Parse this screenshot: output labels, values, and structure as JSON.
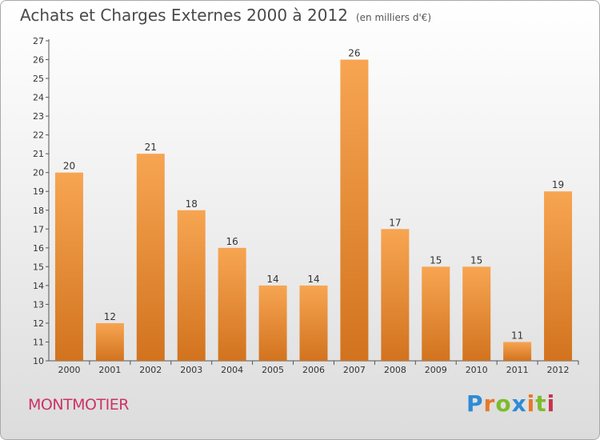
{
  "header": {
    "title": "Achats et Charges Externes 2000 à 2012",
    "subtitle": "(en milliers d'€)"
  },
  "footer": {
    "town": "MONTMOTIER",
    "logo_text": "Proxiti"
  },
  "colors": {
    "bar_light": "#f7a552",
    "bar_dark": "#d2731e",
    "town_text": "#cc3366",
    "logo_p": "#2e8bd6",
    "logo_r": "#e8782a",
    "logo_o": "#7dbb2e",
    "logo_x": "#2e8bd6",
    "logo_i": "#e8782a",
    "logo_t": "#7dbb2e",
    "logo_i2": "#c8324e"
  },
  "chart_data": {
    "type": "bar",
    "categories": [
      "2000",
      "2001",
      "2002",
      "2003",
      "2004",
      "2005",
      "2006",
      "2007",
      "2008",
      "2009",
      "2010",
      "2011",
      "2012"
    ],
    "values": [
      20,
      12,
      21,
      18,
      16,
      14,
      14,
      26,
      17,
      15,
      15,
      11,
      19
    ],
    "title": "Achats et Charges Externes 2000 à 2012",
    "subtitle": "(en milliers d'€)",
    "ylim": [
      10,
      27
    ],
    "yticks": [
      10,
      11,
      12,
      13,
      14,
      15,
      16,
      17,
      18,
      19,
      20,
      21,
      22,
      23,
      24,
      25,
      26,
      27
    ],
    "grid": false,
    "legend": "none"
  }
}
